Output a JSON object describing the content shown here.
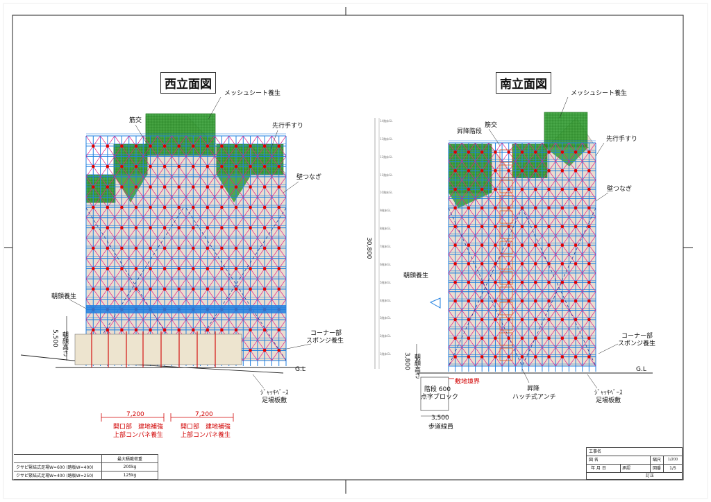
{
  "west": {
    "title": "西立面図",
    "mesh_sheet": "メッシュシート養生",
    "brace": "筋交",
    "handrail": "先行手すり",
    "wall_tie": "壁つなぎ",
    "canopy": "朝顔養生",
    "corner": "コーナー部",
    "sponge": "スポンジ養生",
    "height_dim": "5,500",
    "height_label": "朝顔高さ",
    "gl": "G.L",
    "jack_base": "ｼﾞｬｯｷﾍﾞｰｽ",
    "base_board": "足場板敷",
    "opening_1": {
      "dim": "7,200",
      "line1": "開口部　建地補強",
      "line2": "上部コンパネ養生"
    },
    "opening_2": {
      "dim": "7,200",
      "line1": "開口部　建地補強",
      "line2": "上部コンパネ養生"
    }
  },
  "south": {
    "title": "南立面図",
    "mesh_sheet": "メッシュシート養生",
    "brace": "筋交",
    "stair": "昇降階段",
    "handrail": "先行手すり",
    "wall_tie": "壁つなぎ",
    "canopy": "朝顔養生",
    "corner": "コーナー部",
    "sponge": "スポンジ養生",
    "total_height": "30,800",
    "height_dim": "3,800",
    "height_label": "朝顔高さ",
    "gl": "G.L",
    "jack_base": "ｼﾞｬｯｷﾍﾞｰｽ",
    "base_board": "足場板敷",
    "boundary": "敷地境界",
    "side_line1": "階段 600",
    "side_line2": "点字ブロック",
    "lift_line1": "昇降",
    "lift_line2": "ハッチ式アンチ",
    "walk_dim": "3,500",
    "walk_label": "歩道線員",
    "floors": [
      "1階床GL",
      "2階床GL",
      "3階床GL",
      "4階床GL",
      "5階床GL",
      "6階床GL",
      "7階床GL",
      "8階床GL",
      "9階床GL",
      "10階床GL",
      "11階床GL",
      "12階床GL",
      "13階床GL",
      "14階床GL"
    ]
  },
  "load_table": {
    "header": "最大積載荷重",
    "rows": [
      {
        "name": "クサビ緊結式足場W=600 (踏板W=400)",
        "value": "200kg"
      },
      {
        "name": "クサビ緊結式足場W=400 (踏板W=250)",
        "value": "125kg"
      }
    ]
  },
  "title_block": {
    "project_label": "工事名",
    "drawing_label": "図 名",
    "scale_label": "縮尺",
    "scale_values": "1/200",
    "date_label": "年 月 日",
    "drawer_label": "承認",
    "drawing_no_label": "図番",
    "drawing_no": "1/5",
    "revision_label": "訂正"
  },
  "colors": {
    "scaffold_blue": "#1e7fe0",
    "brace_magenta": "#e0208c",
    "mesh_green": "#2a9a2a",
    "tie_red": "#dd0000"
  }
}
